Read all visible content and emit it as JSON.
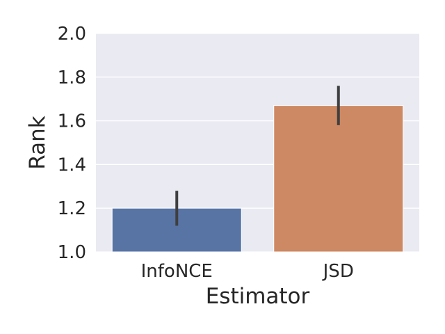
{
  "chart_data": {
    "type": "bar",
    "title": "",
    "xlabel": "Estimator",
    "ylabel": "Rank",
    "categories": [
      "InfoNCE",
      "JSD"
    ],
    "values": [
      1.2,
      1.67
    ],
    "error_low": [
      1.12,
      1.58
    ],
    "error_high": [
      1.28,
      1.76
    ],
    "ylim": [
      1.0,
      2.0
    ],
    "yticks": [
      1.0,
      1.2,
      1.4,
      1.6,
      1.8,
      2.0
    ],
    "ytick_labels": [
      "1.0",
      "1.2",
      "1.4",
      "1.6",
      "1.8",
      "2.0"
    ],
    "grid": true,
    "colors": {
      "background": "#eaeaf2",
      "grid": "#ffffff",
      "bars": [
        "#5874a5",
        "#cd8963"
      ],
      "error_bar": "#3f3f3f",
      "text": "#262626"
    }
  }
}
